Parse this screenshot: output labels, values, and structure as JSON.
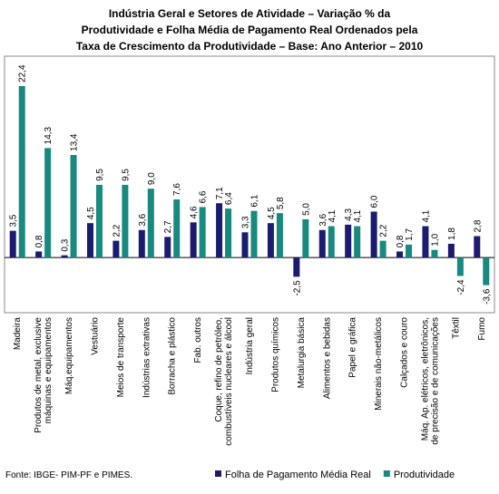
{
  "chart_data": {
    "type": "bar",
    "title": [
      "Indústria Geral e Setores de Atividade – Variação % da",
      "Produtividade e Folha Média de Pagamento Real Ordenados pela",
      "Taxa de Crescimento da Produtividade – Base: Ano Anterior – 2010"
    ],
    "source": "Fonte: IBGE- PIM-PF e PIMES.",
    "categories": [
      "Madeira",
      "Produtos de metal, exclusive\nmáquinas e equipamentos",
      "Máq.equipamentos",
      "Vestuário",
      "Meios de transporte",
      "Indústrias extrativas",
      "Borracha e plástico",
      "Fab. outros",
      "Coque, refino de petróleo,\ncombustíveis nucleares e álcool",
      "Indústria geral",
      "Produtos químicos",
      "Metalurgia básica",
      "Alimentos e bebidas",
      "Papel e gráfica",
      "Minerais não-metálicos",
      "Calçados e couro",
      "Máq. Ap. elétricos, eletrônicos,\nde precisão e de comunicações",
      "Têxtil",
      "Fumo"
    ],
    "series": [
      {
        "name": "Folha de Pagamento Média Real",
        "color": "#1b1b6f",
        "values": [
          3.5,
          0.8,
          0.3,
          4.5,
          2.2,
          3.6,
          2.7,
          4.6,
          7.1,
          3.3,
          4.5,
          -2.5,
          3.6,
          4.3,
          6.0,
          0.8,
          4.1,
          1.8,
          2.8
        ],
        "value_labels": [
          "3,5",
          "0,8",
          "0,3",
          "4,5",
          "2,2",
          "3,6",
          "2,7",
          "4,6",
          "7,1",
          "3,3",
          "4,5",
          "-2,5",
          "3,6",
          "4,3",
          "6,0",
          "0,8",
          "4,1",
          "1,8",
          "2,8"
        ]
      },
      {
        "name": "Produtividade",
        "color": "#17897f",
        "values": [
          22.4,
          14.3,
          13.4,
          9.5,
          9.5,
          9.0,
          7.6,
          6.6,
          6.4,
          6.1,
          5.8,
          5.0,
          4.1,
          4.1,
          2.2,
          1.7,
          1.0,
          -2.4,
          -3.6
        ],
        "value_labels": [
          "22,4",
          "14,3",
          "13,4",
          "9,5",
          "9,5",
          "9,0",
          "7,6",
          "6,6",
          "6,4",
          "6,1",
          "5,8",
          "5,0",
          "4,1",
          "4,1",
          "2,2",
          "1,7",
          "1,0",
          "-2,4",
          "-3,6"
        ]
      }
    ],
    "ylim": [
      -7.2,
      26.3
    ]
  }
}
